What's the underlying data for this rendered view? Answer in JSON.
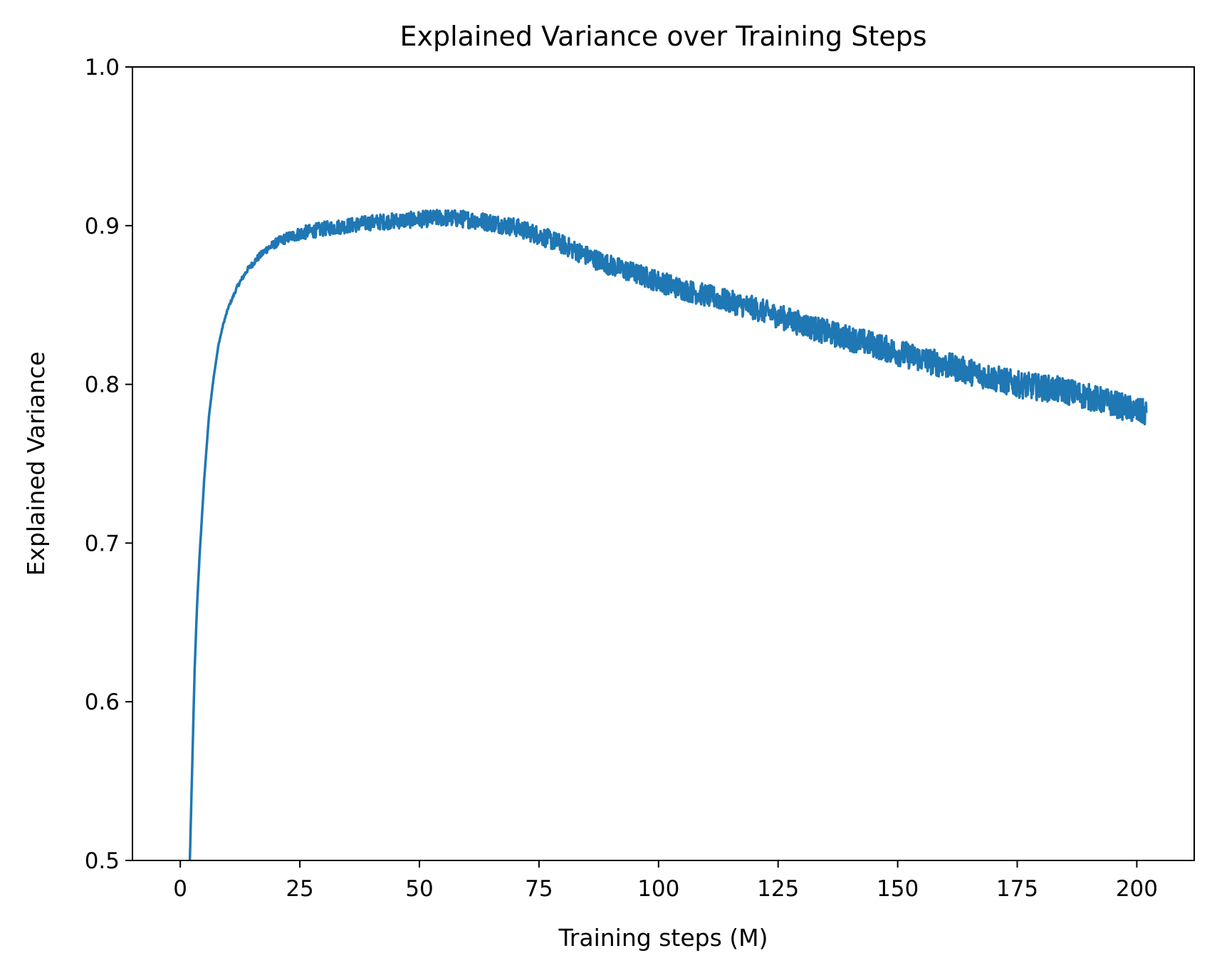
{
  "chart_data": {
    "type": "line",
    "title": "Explained Variance over Training Steps",
    "xlabel": "Training steps (M)",
    "ylabel": "Explained Variance",
    "xlim": [
      -10,
      212
    ],
    "ylim": [
      0.5,
      1.0
    ],
    "xticks": [
      0,
      25,
      50,
      75,
      100,
      125,
      150,
      175,
      200
    ],
    "xtick_labels": [
      "0",
      "25",
      "50",
      "75",
      "100",
      "125",
      "150",
      "175",
      "200"
    ],
    "yticks": [
      0.5,
      0.6,
      0.7,
      0.8,
      0.9,
      1.0
    ],
    "ytick_labels": [
      "0.5",
      "0.6",
      "0.7",
      "0.8",
      "0.9",
      "1.0"
    ],
    "grid": false,
    "series": [
      {
        "name": "Explained Variance",
        "color": "#1f77b4",
        "noise_band": 0.006,
        "x": [
          2.0,
          2.5,
          3.0,
          3.5,
          4.0,
          5.0,
          6.0,
          7.0,
          8.0,
          9.0,
          10.0,
          12.0,
          14.0,
          16.0,
          18.0,
          20.0,
          22.0,
          25.0,
          30.0,
          35.0,
          40.0,
          45.0,
          50.0,
          55.0,
          60.0,
          65.0,
          70.0,
          75.0,
          80.0,
          85.0,
          90.0,
          95.0,
          100.0,
          105.0,
          110.0,
          115.0,
          120.0,
          125.0,
          130.0,
          135.0,
          140.0,
          145.0,
          150.0,
          155.0,
          160.0,
          165.0,
          170.0,
          175.0,
          180.0,
          185.0,
          190.0,
          195.0,
          200.0,
          202.0
        ],
        "y": [
          0.5,
          0.56,
          0.62,
          0.66,
          0.69,
          0.74,
          0.78,
          0.805,
          0.825,
          0.838,
          0.848,
          0.862,
          0.872,
          0.879,
          0.885,
          0.889,
          0.892,
          0.895,
          0.898,
          0.9,
          0.902,
          0.903,
          0.904,
          0.905,
          0.904,
          0.902,
          0.899,
          0.894,
          0.888,
          0.881,
          0.875,
          0.87,
          0.865,
          0.86,
          0.856,
          0.852,
          0.848,
          0.843,
          0.838,
          0.833,
          0.829,
          0.825,
          0.82,
          0.816,
          0.812,
          0.808,
          0.804,
          0.8,
          0.798,
          0.796,
          0.792,
          0.788,
          0.783,
          0.782
        ]
      }
    ]
  }
}
